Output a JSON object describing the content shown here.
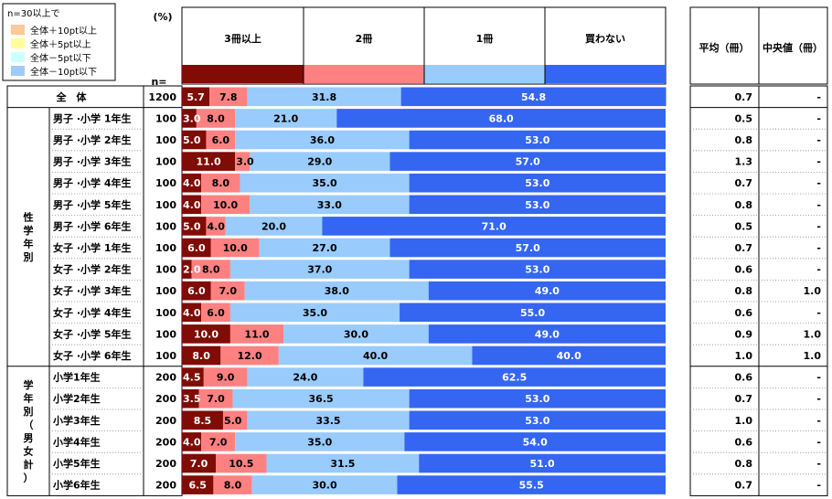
{
  "legend": {
    "title": "n=30以上で",
    "items": [
      {
        "label": "全体＋10pt以上",
        "color": "#fbc99a"
      },
      {
        "label": "全体＋5pt以上",
        "color": "#fdfd9b"
      },
      {
        "label": "全体－5pt以下",
        "color": "#ccffff"
      },
      {
        "label": "全体－10pt以下",
        "color": "#9fcbf8"
      }
    ]
  },
  "header": {
    "percent": "(%)",
    "n": "n=",
    "mean": "平均（冊）",
    "median": "中央値（冊）"
  },
  "groups": [
    {
      "label": "性学年別",
      "chars": [
        "性",
        "学",
        "年",
        "別"
      ]
    },
    {
      "label": "学年別（男女計）",
      "chars": [
        "学",
        "年",
        "別",
        "（",
        "男",
        "女",
        "計",
        "）"
      ]
    }
  ],
  "chart_data": {
    "type": "bar",
    "stacked": true,
    "orientation": "horizontal",
    "unit": "%",
    "xlim": [
      0,
      100
    ],
    "series_names": [
      "3冊以上",
      "2冊",
      "1冊",
      "買わない"
    ],
    "colors": [
      "#7f0c05",
      "#fe8181",
      "#99cbfd",
      "#3466f1"
    ],
    "rows": [
      {
        "label": "全　体",
        "n": "1200",
        "values": [
          5.7,
          7.8,
          31.8,
          54.8
        ],
        "labels": [
          "5.7",
          "7.8",
          "31.8",
          "54.8"
        ],
        "mean": "0.7",
        "median": "-",
        "overall": true
      },
      {
        "label": "男子 ·小学 1年生",
        "n": "100",
        "values": [
          3.0,
          8.0,
          21.0,
          68.0
        ],
        "labels": [
          "3.0",
          "8.0",
          "21.0",
          "68.0"
        ],
        "mean": "0.5",
        "median": "-"
      },
      {
        "label": "男子 ·小学 2年生",
        "n": "100",
        "values": [
          5.0,
          6.0,
          36.0,
          53.0
        ],
        "labels": [
          "5.0",
          "6.0",
          "36.0",
          "53.0"
        ],
        "mean": "0.8",
        "median": "-"
      },
      {
        "label": "男子 ·小学 3年生",
        "n": "100",
        "values": [
          11.0,
          3.0,
          29.0,
          57.0
        ],
        "labels": [
          "11.0",
          "3.0",
          "29.0",
          "57.0"
        ],
        "mean": "1.3",
        "median": "-"
      },
      {
        "label": "男子 ·小学 4年生",
        "n": "100",
        "values": [
          4.0,
          8.0,
          35.0,
          53.0
        ],
        "labels": [
          "4.0",
          "8.0",
          "35.0",
          "53.0"
        ],
        "mean": "0.7",
        "median": "-"
      },
      {
        "label": "男子 ·小学 5年生",
        "n": "100",
        "values": [
          4.0,
          10.0,
          33.0,
          53.0
        ],
        "labels": [
          "4.0",
          "10.0",
          "33.0",
          "53.0"
        ],
        "mean": "0.8",
        "median": "-"
      },
      {
        "label": "男子 ·小学 6年生",
        "n": "100",
        "values": [
          5.0,
          4.0,
          20.0,
          71.0
        ],
        "labels": [
          "5.0",
          "4.0",
          "20.0",
          "71.0"
        ],
        "mean": "0.5",
        "median": "-"
      },
      {
        "label": "女子 ·小学 1年生",
        "n": "100",
        "values": [
          6.0,
          10.0,
          27.0,
          57.0
        ],
        "labels": [
          "6.0",
          "10.0",
          "27.0",
          "57.0"
        ],
        "mean": "0.7",
        "median": "-"
      },
      {
        "label": "女子 ·小学 2年生",
        "n": "100",
        "values": [
          2.0,
          8.0,
          37.0,
          53.0
        ],
        "labels": [
          "2.0",
          "8.0",
          "37.0",
          "53.0"
        ],
        "mean": "0.6",
        "median": "-"
      },
      {
        "label": "女子 ·小学 3年生",
        "n": "100",
        "values": [
          6.0,
          7.0,
          38.0,
          49.0
        ],
        "labels": [
          "6.0",
          "7.0",
          "38.0",
          "49.0"
        ],
        "mean": "0.8",
        "median": "1.0"
      },
      {
        "label": "女子 ·小学 4年生",
        "n": "100",
        "values": [
          4.0,
          6.0,
          35.0,
          55.0
        ],
        "labels": [
          "4.0",
          "6.0",
          "35.0",
          "55.0"
        ],
        "mean": "0.6",
        "median": "-"
      },
      {
        "label": "女子 ·小学 5年生",
        "n": "100",
        "values": [
          10.0,
          11.0,
          30.0,
          49.0
        ],
        "labels": [
          "10.0",
          "11.0",
          "30.0",
          "49.0"
        ],
        "mean": "0.9",
        "median": "1.0"
      },
      {
        "label": "女子 ·小学 6年生",
        "n": "100",
        "values": [
          8.0,
          12.0,
          40.0,
          40.0
        ],
        "labels": [
          "8.0",
          "12.0",
          "40.0",
          "40.0"
        ],
        "mean": "1.0",
        "median": "1.0"
      },
      {
        "label": "小学1年生",
        "n": "200",
        "values": [
          4.5,
          9.0,
          24.0,
          62.5
        ],
        "labels": [
          "4.5",
          "9.0",
          "24.0",
          "62.5"
        ],
        "mean": "0.6",
        "median": "-"
      },
      {
        "label": "小学2年生",
        "n": "200",
        "values": [
          3.5,
          7.0,
          36.5,
          53.0
        ],
        "labels": [
          "3.5",
          "7.0",
          "36.5",
          "53.0"
        ],
        "mean": "0.7",
        "median": "-"
      },
      {
        "label": "小学3年生",
        "n": "200",
        "values": [
          8.5,
          5.0,
          33.5,
          53.0
        ],
        "labels": [
          "8.5",
          "5.0",
          "33.5",
          "53.0"
        ],
        "mean": "1.0",
        "median": "-"
      },
      {
        "label": "小学4年生",
        "n": "200",
        "values": [
          4.0,
          7.0,
          35.0,
          54.0
        ],
        "labels": [
          "4.0",
          "7.0",
          "35.0",
          "54.0"
        ],
        "mean": "0.6",
        "median": "-"
      },
      {
        "label": "小学5年生",
        "n": "200",
        "values": [
          7.0,
          10.5,
          31.5,
          51.0
        ],
        "labels": [
          "7.0",
          "10.5",
          "31.5",
          "51.0"
        ],
        "mean": "0.8",
        "median": "-"
      },
      {
        "label": "小学6年生",
        "n": "200",
        "values": [
          6.5,
          8.0,
          30.0,
          55.5
        ],
        "labels": [
          "6.5",
          "8.0",
          "30.0",
          "55.5"
        ],
        "mean": "0.7",
        "median": "-"
      }
    ]
  }
}
